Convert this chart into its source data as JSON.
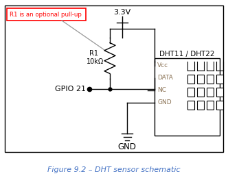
{
  "title": "Figure 9.2 – DHT sensor schematic",
  "title_color": "#4472C4",
  "annotation_text": "R1 is an optional pull-up",
  "voltage_label": "3.3V",
  "resistor_label_r1": "R1",
  "resistor_label_ohm": "10kΩ",
  "gpio_label": "GPIO 21",
  "chip_label": "DHT11 / DHT22",
  "pin_labels": [
    "Vcc",
    "DATA",
    "NC",
    "GND"
  ],
  "gnd_label": "GND",
  "background": "#FFFFFF",
  "line_color": "#000000",
  "pin_text_color": "#8B7355"
}
